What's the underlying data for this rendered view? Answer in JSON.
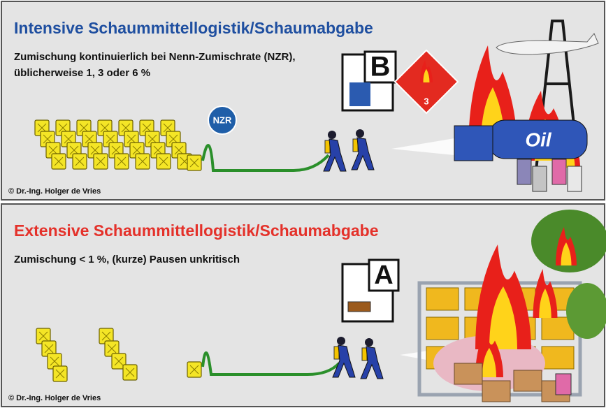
{
  "panels": [
    {
      "title": "Intensive Schaummittellogistik/Schaumabgabe",
      "subtitle": [
        "Zumischung kontinuierlich bei Nenn-Zumischrate (NZR),",
        "üblicherweise 1, 3 oder 6 %"
      ],
      "nzr_label": "NZR",
      "fire_class": "B",
      "hazard_label": "3",
      "tank_label": "Oil",
      "copyright": "© Dr.-Ing. Holger de Vries"
    },
    {
      "title": "Extensive Schaummittellogistik/Schaumabgabe",
      "subtitle": [
        "Zumischung < 1 %, (kurze) Pausen unkritisch"
      ],
      "fire_class": "A",
      "copyright": "© Dr.-Ing. Holger de Vries"
    }
  ]
}
